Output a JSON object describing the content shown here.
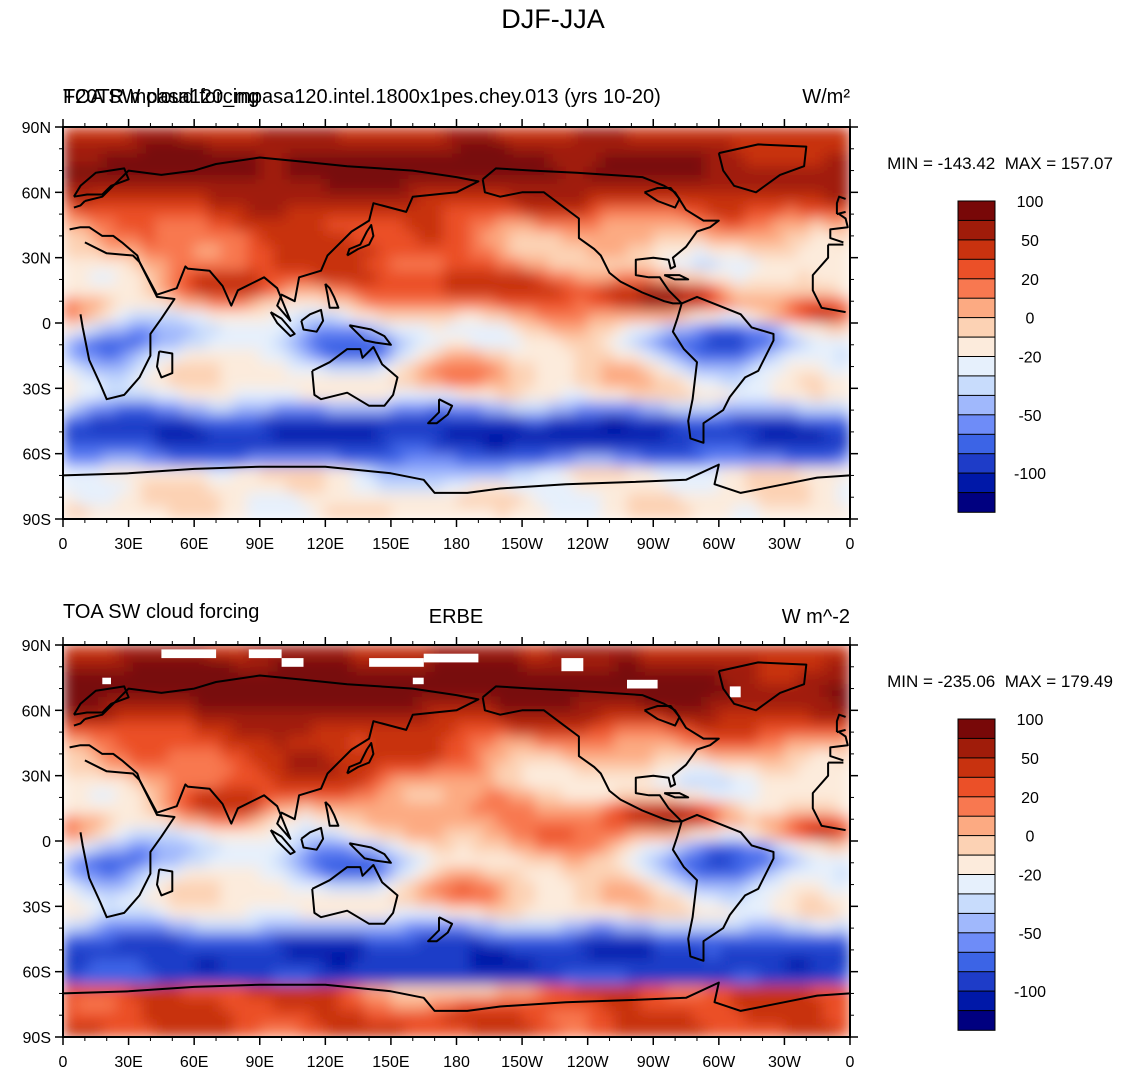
{
  "page": {
    "title": "DJF-JJA"
  },
  "colors": {
    "levels": [
      "#000080",
      "#0018a8",
      "#1e3cc8",
      "#3c64e6",
      "#6e8cf8",
      "#a0b8fc",
      "#c8dcfc",
      "#e6f0fc",
      "#fcebdc",
      "#fcd2b4",
      "#fcaa82",
      "#f87850",
      "#eb5028",
      "#c8320f",
      "#a01c0a",
      "#780808"
    ],
    "land_outline": "#000000",
    "missing": "#ffffff"
  },
  "chart_data": [
    {
      "type": "heatmap",
      "panel": "top",
      "title_left_1": "F20TR.mpasa120_mpasa120.intel.1800x1pes.chey.013 (yrs 10-20)",
      "title_left_2": "TOA SW cloud forcing",
      "title_right": "W/m²",
      "title_center": "",
      "stats": "MIN = -143.42  MAX = 157.07",
      "min": -143.42,
      "max": 157.07,
      "x_ticks": [
        "0",
        "30E",
        "60E",
        "90E",
        "120E",
        "150E",
        "180",
        "150W",
        "120W",
        "90W",
        "60W",
        "30W",
        "0"
      ],
      "y_ticks": [
        "90N",
        "60N",
        "30N",
        "0",
        "30S",
        "60S",
        "90S"
      ],
      "xlim": [
        0,
        360
      ],
      "ylim": [
        -90,
        90
      ],
      "contour_levels": [
        -120,
        -100,
        -80,
        -60,
        -50,
        -40,
        -30,
        -20,
        -10,
        0,
        10,
        20,
        30,
        50,
        80,
        100,
        120
      ],
      "colorbar_labels": [
        "100",
        "50",
        "20",
        "0",
        "-20",
        "-50",
        "-100"
      ],
      "colorbar_label_values": [
        100,
        50,
        20,
        0,
        -20,
        -50,
        -100
      ]
    },
    {
      "type": "heatmap",
      "panel": "bottom",
      "title_left_1": "TOA SW cloud forcing",
      "title_left_2": "",
      "title_right": "W m^-2",
      "title_center": "ERBE",
      "stats": "MIN = -235.06  MAX = 179.49",
      "min": -235.06,
      "max": 179.49,
      "x_ticks": [
        "0",
        "30E",
        "60E",
        "90E",
        "120E",
        "150E",
        "180",
        "150W",
        "120W",
        "90W",
        "60W",
        "30W",
        "0"
      ],
      "y_ticks": [
        "90N",
        "60N",
        "30N",
        "0",
        "30S",
        "60S",
        "90S"
      ],
      "xlim": [
        0,
        360
      ],
      "ylim": [
        -90,
        90
      ],
      "contour_levels": [
        -120,
        -100,
        -80,
        -60,
        -50,
        -40,
        -30,
        -20,
        -10,
        0,
        10,
        20,
        30,
        50,
        80,
        100,
        120
      ],
      "colorbar_labels": [
        "100",
        "50",
        "20",
        "0",
        "-20",
        "-50",
        "-100"
      ],
      "colorbar_label_values": [
        100,
        50,
        20,
        0,
        -20,
        -50,
        -100
      ]
    }
  ]
}
